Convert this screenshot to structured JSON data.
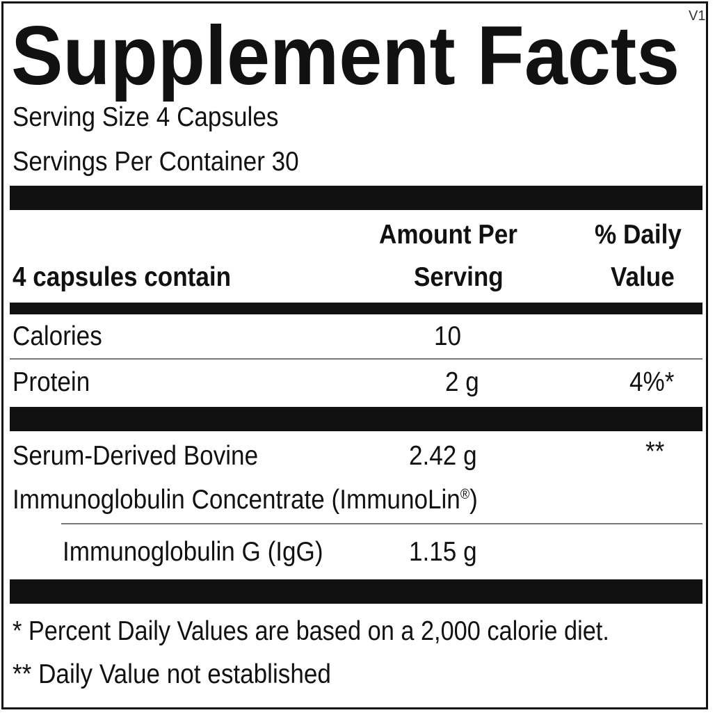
{
  "title": "Supplement Facts",
  "version": "V1",
  "serving_size": "Serving Size 4 Capsules",
  "servings_per_container": "Servings Per Container 30",
  "header": {
    "row_label": "4 capsules contain",
    "amount_line1": "Amount Per",
    "amount_line2": "Serving",
    "dv_line1": "% Daily",
    "dv_line2": "Value"
  },
  "rows": [
    {
      "name": "Calories",
      "amount": "10",
      "dv": ""
    },
    {
      "name": "Protein",
      "amount": "2 g",
      "dv": "4%*"
    },
    {
      "name_line1": "Serum-Derived Bovine",
      "name_line2": "Immunoglobulin Concentrate (ImmunoLin",
      "registered": "®",
      "name_close": ")",
      "amount": "2.42 g",
      "dv": "**"
    },
    {
      "name": "Immunoglobulin G (IgG)",
      "amount": "1.15 g",
      "dv": ""
    }
  ],
  "footnotes": [
    "* Percent Daily Values are based on a 2,000 calorie diet.",
    "** Daily Value not established"
  ]
}
